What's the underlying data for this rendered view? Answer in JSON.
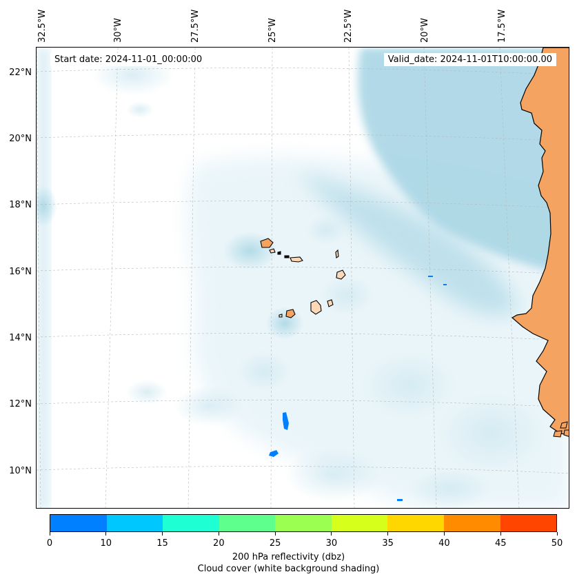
{
  "map": {
    "start_date": "Start date: 2024-11-01_00:00:00",
    "valid_date": "Valid_date: 2024-11-01T10:00:00.00",
    "lon_labels": [
      "32.5°W",
      "30°W",
      "27.5°W",
      "25°W",
      "22.5°W",
      "20°W",
      "17.5°W"
    ],
    "lat_labels": [
      "22°N",
      "20°N",
      "18°N",
      "16°N",
      "14°N",
      "12°N",
      "10°N"
    ],
    "colors": {
      "land": "#f4a460",
      "land_light": "#fbd9b8",
      "cloud_heavy": "#add8e6",
      "cloud_light": "#e3f2f8",
      "reflectivity_echo": "#0080ff",
      "grid": "#b0b0b0"
    },
    "features": [
      "West African coast",
      "Cape Verde islands",
      "reflectivity echoes"
    ]
  },
  "colorbar": {
    "ticks": [
      "0",
      "10",
      "15",
      "20",
      "25",
      "30",
      "35",
      "40",
      "45",
      "50"
    ],
    "colors": [
      "#0080ff",
      "#00c8ff",
      "#1effd4",
      "#5fff8e",
      "#9bff52",
      "#d6ff1c",
      "#ffd700",
      "#ff8c00",
      "#ff4500"
    ],
    "label": "200 hPa reflectivity (dbz)",
    "sublabel": "Cloud cover (white background shading)"
  }
}
